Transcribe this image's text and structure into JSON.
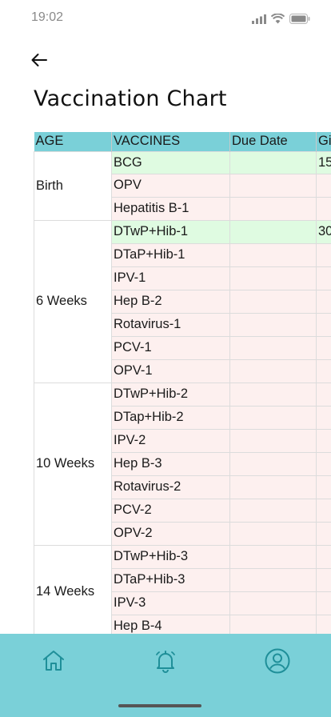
{
  "status_bar": {
    "time": "19:02",
    "icons": [
      "signal-icon",
      "wifi-icon",
      "battery-icon"
    ]
  },
  "header": {
    "back_icon": "arrow-left-icon",
    "title": "Vaccination Chart"
  },
  "table": {
    "columns": [
      "AGE",
      "VACCINES",
      "Due Date",
      "Gi"
    ],
    "groups": [
      {
        "age": "Birth",
        "rows": [
          {
            "vaccine": "BCG",
            "due_date": "",
            "given": "15",
            "status": "given"
          },
          {
            "vaccine": "OPV",
            "due_date": "",
            "given": "",
            "status": "pending"
          },
          {
            "vaccine": "Hepatitis B-1",
            "due_date": "",
            "given": "",
            "status": "pending"
          }
        ]
      },
      {
        "age": "6 Weeks",
        "rows": [
          {
            "vaccine": "DTwP+Hib-1",
            "due_date": "",
            "given": "30",
            "status": "given"
          },
          {
            "vaccine": "DTaP+Hib-1",
            "due_date": "",
            "given": "",
            "status": "pending"
          },
          {
            "vaccine": "IPV-1",
            "due_date": "",
            "given": "",
            "status": "pending"
          },
          {
            "vaccine": "Hep B-2",
            "due_date": "",
            "given": "",
            "status": "pending"
          },
          {
            "vaccine": "Rotavirus-1",
            "due_date": "",
            "given": "",
            "status": "pending"
          },
          {
            "vaccine": "PCV-1",
            "due_date": "",
            "given": "",
            "status": "pending"
          },
          {
            "vaccine": "OPV-1",
            "due_date": "",
            "given": "",
            "status": "pending"
          }
        ]
      },
      {
        "age": "10 Weeks",
        "rows": [
          {
            "vaccine": "DTwP+Hib-2",
            "due_date": "",
            "given": "",
            "status": "pending"
          },
          {
            "vaccine": "DTap+Hib-2",
            "due_date": "",
            "given": "",
            "status": "pending"
          },
          {
            "vaccine": "IPV-2",
            "due_date": "",
            "given": "",
            "status": "pending"
          },
          {
            "vaccine": "Hep B-3",
            "due_date": "",
            "given": "",
            "status": "pending"
          },
          {
            "vaccine": "Rotavirus-2",
            "due_date": "",
            "given": "",
            "status": "pending"
          },
          {
            "vaccine": "PCV-2",
            "due_date": "",
            "given": "",
            "status": "pending"
          },
          {
            "vaccine": "OPV-2",
            "due_date": "",
            "given": "",
            "status": "pending"
          }
        ]
      },
      {
        "age": "14 Weeks",
        "rows": [
          {
            "vaccine": "DTwP+Hib-3",
            "due_date": "",
            "given": "",
            "status": "pending"
          },
          {
            "vaccine": "DTaP+Hib-3",
            "due_date": "",
            "given": "",
            "status": "pending"
          },
          {
            "vaccine": "IPV-3",
            "due_date": "",
            "given": "",
            "status": "pending"
          },
          {
            "vaccine": "Hep B-4",
            "due_date": "",
            "given": "",
            "status": "pending"
          }
        ]
      }
    ]
  },
  "bottom_nav": {
    "items": [
      {
        "name": "home",
        "icon": "home-icon"
      },
      {
        "name": "reminders",
        "icon": "bell-icon"
      },
      {
        "name": "profile",
        "icon": "profile-icon"
      }
    ]
  },
  "colors": {
    "accent": "#7ad0d8",
    "header_row": "#7ad0d8",
    "given_row": "#dffbe1",
    "pending_row": "#fdf0ef",
    "nav_icon": "#1f8f99"
  }
}
